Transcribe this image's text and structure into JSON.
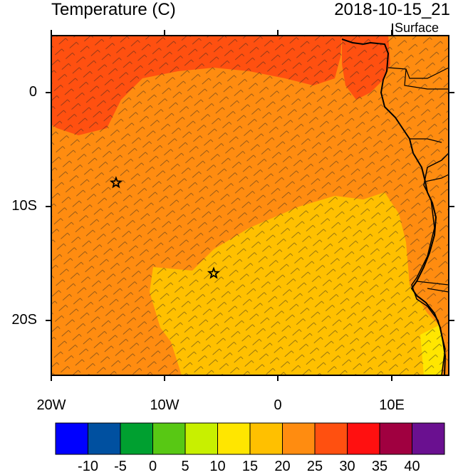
{
  "header": {
    "title": "Temperature (C)",
    "datetime": "2018-10-15_21",
    "level": "Surface"
  },
  "axes": {
    "y_ticks": [
      "0",
      "10S",
      "20S"
    ],
    "x_ticks": [
      "20W",
      "10W",
      "0",
      "10E"
    ],
    "lon_range": [
      -20,
      15
    ],
    "lat_range": [
      -25,
      5
    ]
  },
  "markers": [
    {
      "name": "star-marker",
      "lon": -14.3,
      "lat": -8.0
    },
    {
      "name": "star-marker",
      "lon": -5.7,
      "lat": -16.0
    }
  ],
  "colorbar": {
    "labels": [
      "-10",
      "-5",
      "0",
      "5",
      "10",
      "15",
      "20",
      "25",
      "30",
      "35",
      "40"
    ],
    "colors": [
      "#0000ff",
      "#0050a0",
      "#00a030",
      "#58c814",
      "#c8f000",
      "#ffe600",
      "#ffc000",
      "#ff8c10",
      "#ff5010",
      "#ff1010",
      "#a00040",
      "#6a1090"
    ]
  },
  "fill_colors": {
    "hot": "#ff5010",
    "warm": "#ff8c10",
    "mild": "#ffc000",
    "cool": "#ffe600",
    "land": "#ff8c10"
  }
}
